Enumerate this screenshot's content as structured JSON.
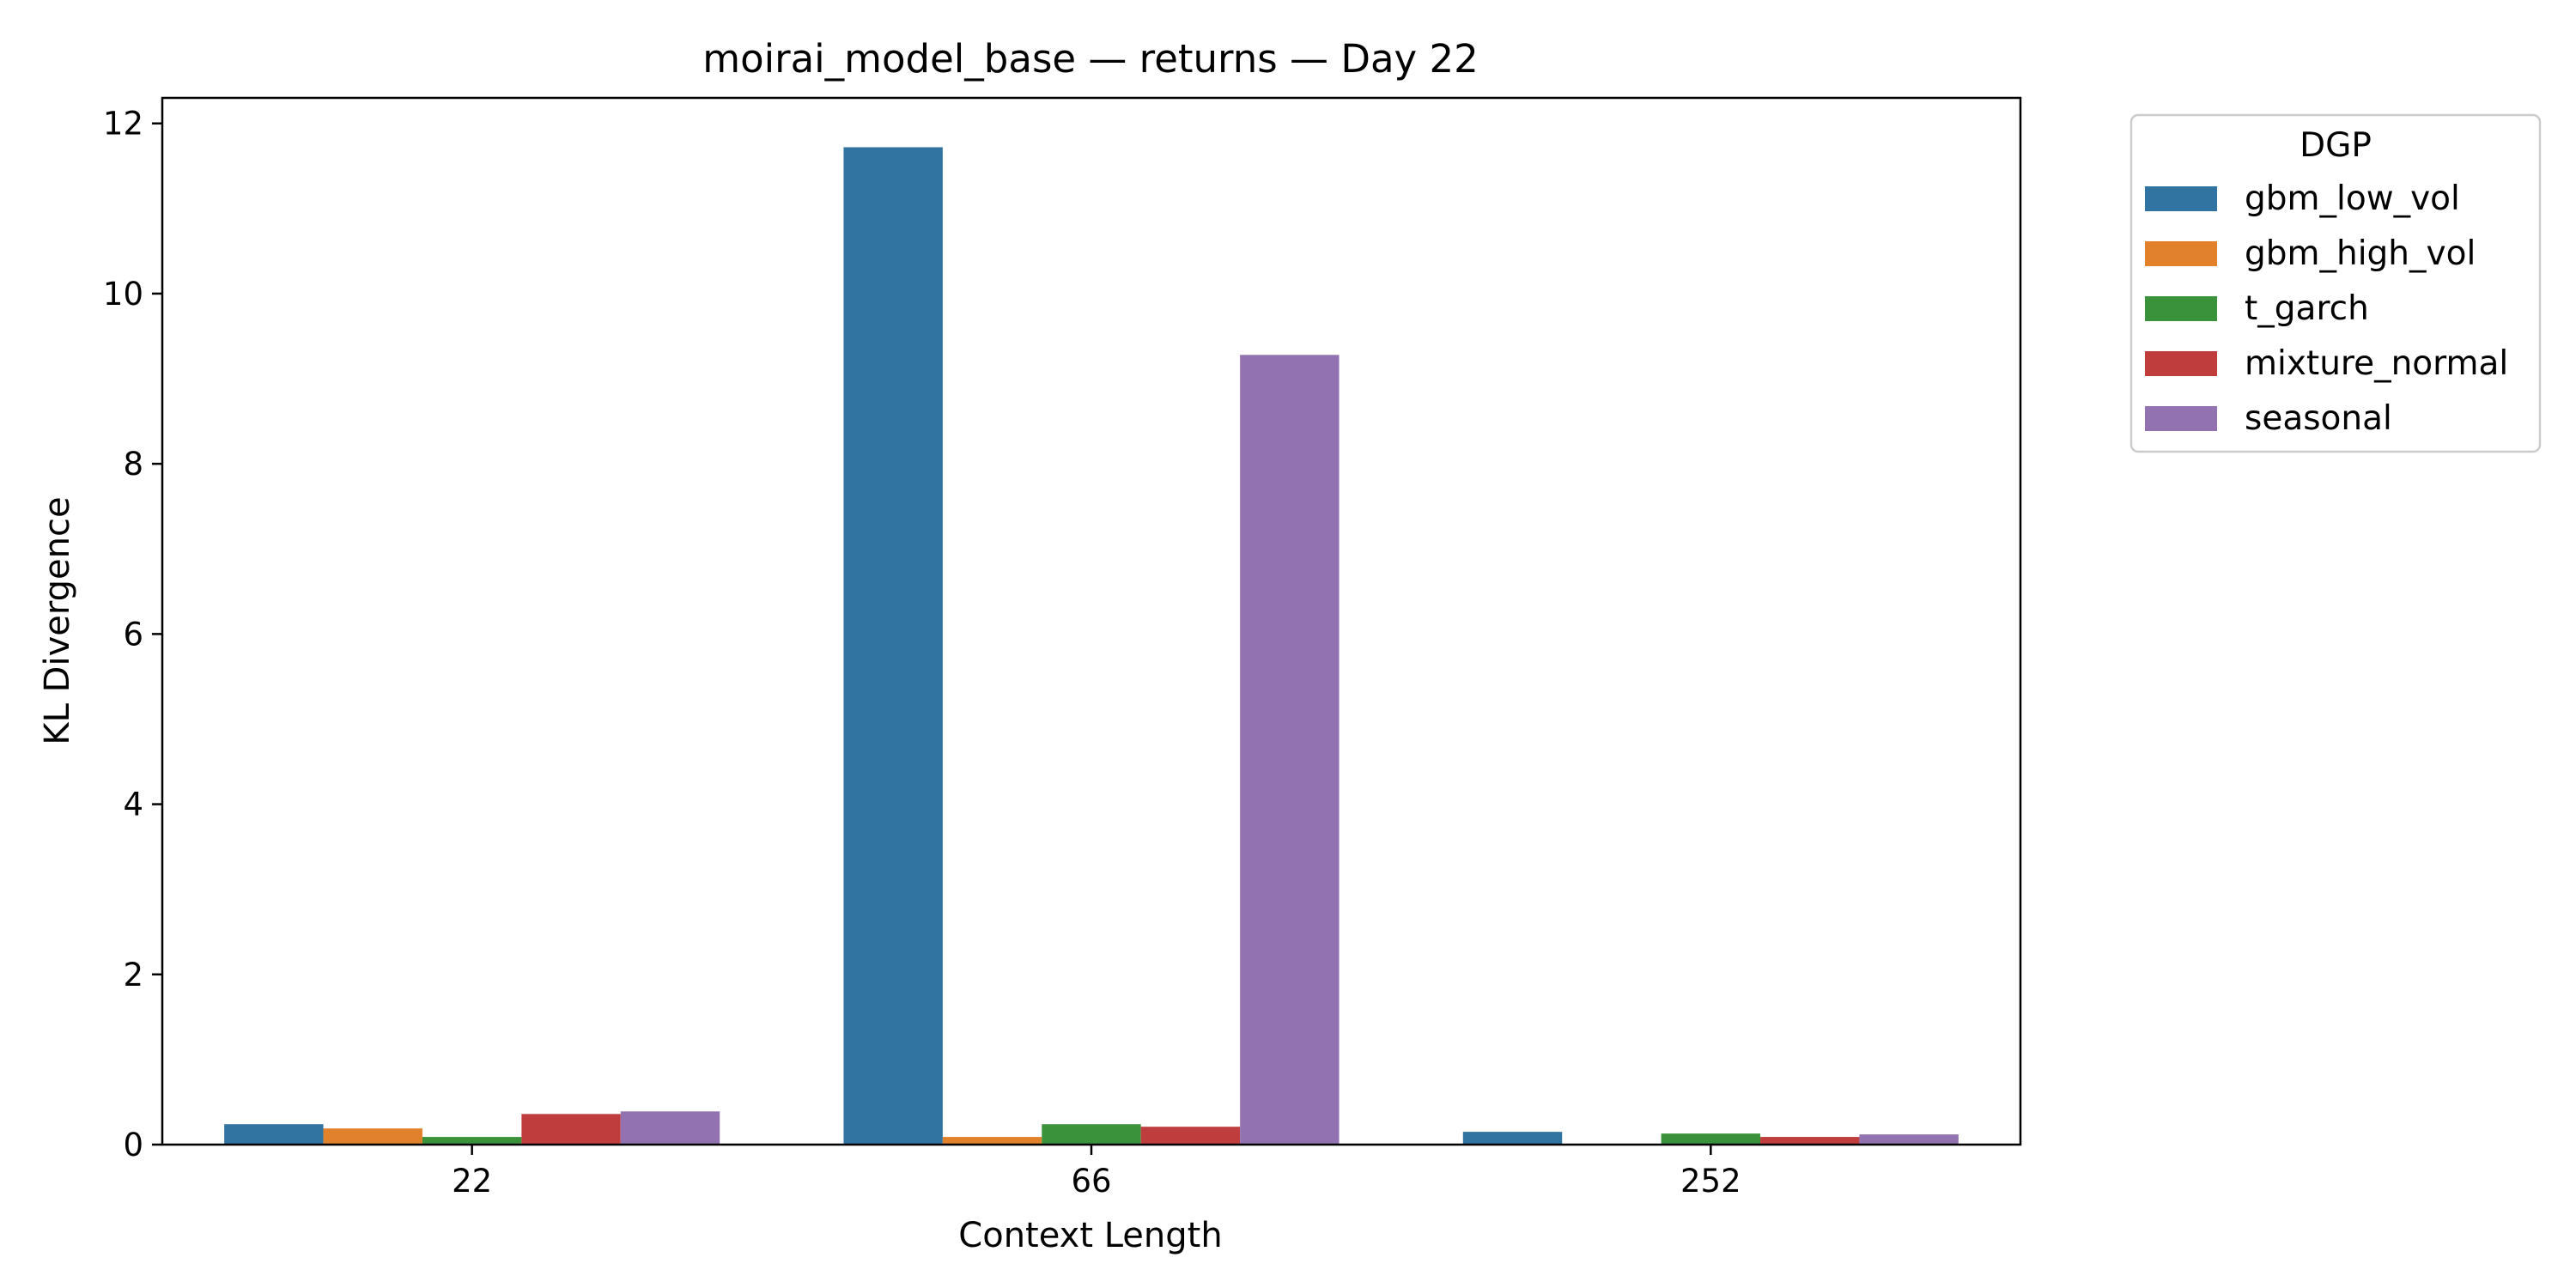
{
  "chart_data": {
    "type": "bar",
    "title": "moirai_model_base — returns — Day 22",
    "xlabel": "Context Length",
    "ylabel": "KL Divergence",
    "categories": [
      "22",
      "66",
      "252"
    ],
    "ylim": [
      0,
      12.3
    ],
    "yticks": [
      0,
      2,
      4,
      6,
      8,
      10,
      12
    ],
    "grid": false,
    "legend": {
      "title": "DGP",
      "position": "outside-top-right"
    },
    "series": [
      {
        "name": "gbm_low_vol",
        "color": "#3274a1",
        "values": [
          0.24,
          11.72,
          0.15
        ]
      },
      {
        "name": "gbm_high_vol",
        "color": "#e1812c",
        "values": [
          0.19,
          0.09,
          0.0
        ]
      },
      {
        "name": "t_garch",
        "color": "#3a923a",
        "values": [
          0.09,
          0.24,
          0.13
        ]
      },
      {
        "name": "mixture_normal",
        "color": "#c03d3e",
        "values": [
          0.36,
          0.21,
          0.09
        ]
      },
      {
        "name": "seasonal",
        "color": "#9372b2",
        "values": [
          0.39,
          9.28,
          0.12
        ]
      }
    ]
  }
}
